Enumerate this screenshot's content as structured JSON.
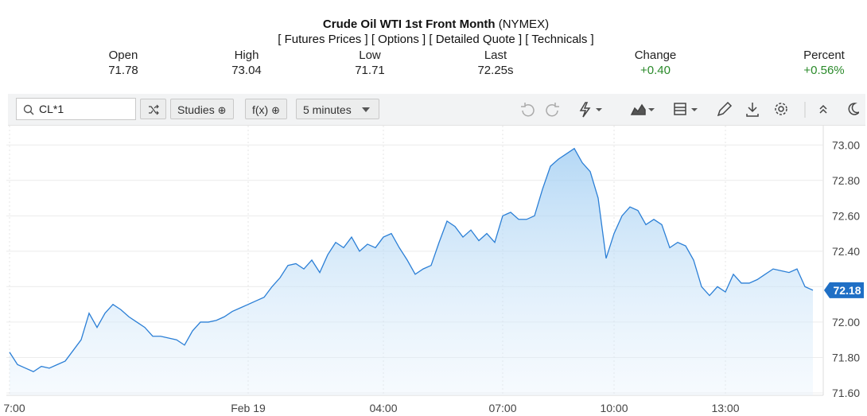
{
  "header": {
    "title": "Crude Oil WTI 1st Front Month",
    "exchange": "(NYMEX)",
    "links": [
      "[ Futures Prices ]",
      "[ Options ]",
      "[ Detailed Quote ]",
      "[ Technicals ]"
    ]
  },
  "quote": [
    {
      "label": "Open",
      "value": "71.78"
    },
    {
      "label": "High",
      "value": "73.04"
    },
    {
      "label": "Low",
      "value": "71.71"
    },
    {
      "label": "Last",
      "value": "72.25s"
    },
    {
      "label": "Change",
      "value": "+0.40"
    },
    {
      "label": "Percent",
      "value": "+0.56%"
    }
  ],
  "toolbar": {
    "symbol": "CL*1",
    "studies": "Studies",
    "function": "f(x)",
    "interval": "5 minutes"
  },
  "chart_data": {
    "type": "line",
    "area": true,
    "color": "#2b7fd6",
    "grid": true,
    "categories": [
      "7:00",
      null,
      null,
      null,
      null,
      null,
      null,
      null,
      null,
      null,
      null,
      null,
      null,
      null,
      null,
      null,
      null,
      null,
      null,
      null,
      null,
      null,
      null,
      null,
      null,
      null,
      null,
      null,
      null,
      null,
      "Feb 19",
      null,
      null,
      null,
      null,
      null,
      null,
      null,
      null,
      null,
      null,
      null,
      null,
      null,
      null,
      null,
      null,
      "04:00",
      null,
      null,
      null,
      null,
      null,
      null,
      null,
      null,
      null,
      null,
      null,
      null,
      null,
      null,
      "07:00",
      null,
      null,
      null,
      null,
      null,
      null,
      null,
      null,
      null,
      null,
      null,
      null,
      null,
      "10:00",
      null,
      null,
      null,
      null,
      null,
      null,
      null,
      null,
      null,
      null,
      null,
      null,
      null,
      "13:00",
      null,
      null,
      null,
      null,
      null,
      null,
      null,
      null,
      null,
      null,
      null
    ],
    "values": [
      71.83,
      71.76,
      71.74,
      71.72,
      71.75,
      71.74,
      71.76,
      71.78,
      71.84,
      71.9,
      72.05,
      71.97,
      72.05,
      72.1,
      72.07,
      72.03,
      72.0,
      71.97,
      71.92,
      71.92,
      71.91,
      71.9,
      71.87,
      71.95,
      72.0,
      72.0,
      72.01,
      72.03,
      72.06,
      72.08,
      72.1,
      72.12,
      72.14,
      72.2,
      72.25,
      72.32,
      72.33,
      72.3,
      72.35,
      72.28,
      72.38,
      72.45,
      72.42,
      72.48,
      72.4,
      72.44,
      72.42,
      72.48,
      72.5,
      72.42,
      72.35,
      72.27,
      72.3,
      72.32,
      72.45,
      72.57,
      72.54,
      72.48,
      72.52,
      72.46,
      72.5,
      72.45,
      72.6,
      72.62,
      72.58,
      72.58,
      72.6,
      72.75,
      72.88,
      72.92,
      72.95,
      72.98,
      72.9,
      72.85,
      72.7,
      72.36,
      72.5,
      72.6,
      72.65,
      72.63,
      72.55,
      72.58,
      72.55,
      72.42,
      72.45,
      72.43,
      72.35,
      72.2,
      72.15,
      72.2,
      72.17,
      72.27,
      72.22,
      72.22,
      72.24,
      72.27,
      72.3,
      72.29,
      72.28,
      72.3,
      72.2,
      72.18
    ],
    "ylim": [
      71.6,
      73.1
    ],
    "yticks": [
      {
        "value": 71.6,
        "label": "71.60"
      },
      {
        "value": 71.8,
        "label": "71.80"
      },
      {
        "value": 72.0,
        "label": "72.00"
      },
      {
        "value": 72.2,
        "label": "72.20"
      },
      {
        "value": 72.4,
        "label": "72.40"
      },
      {
        "value": 72.6,
        "label": "72.60"
      },
      {
        "value": 72.8,
        "label": "72.80"
      },
      {
        "value": 73.0,
        "label": "73.00"
      }
    ]
  }
}
